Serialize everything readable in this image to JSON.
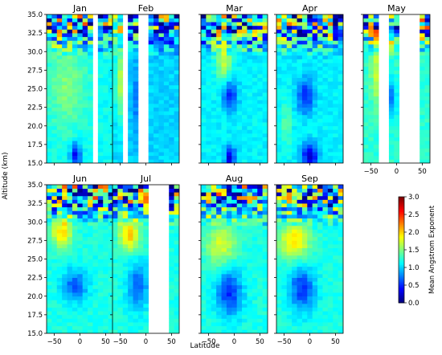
{
  "chart_data": {
    "type": "heatmap",
    "ylabel": "Altitude (km)",
    "xlabel": "Latitude",
    "xlim": [
      -65,
      65
    ],
    "ylim": [
      15,
      35
    ],
    "xticks": [
      "-50",
      "0",
      "50"
    ],
    "yticks": [
      "15.0",
      "17.5",
      "20.0",
      "22.5",
      "25.0",
      "27.5",
      "30.0",
      "32.5",
      "35.0"
    ],
    "grid": false,
    "panels": [
      {
        "title": "Jan",
        "gaps": [
          [
            25,
            33
          ]
        ],
        "features": {
          "bg": 1.15,
          "top": 1.0,
          "low": [
            {
              "lat": -8,
              "alt": 16.2,
              "rx": 10,
              "ry": 1.6,
              "d": -0.85
            }
          ],
          "highs": [
            {
              "lat": -25,
              "alt": 25.5,
              "rx": 40,
              "ry": 6,
              "d": 0.35
            }
          ]
        }
      },
      {
        "title": "Feb",
        "gaps": [
          [
            -40,
            -33
          ],
          [
            -10,
            0
          ]
        ],
        "features": {
          "bg": 1.0,
          "top": 0.8,
          "low": [
            {
              "lat": -15,
              "alt": 23,
              "rx": 10,
              "ry": 6,
              "d": -0.3
            }
          ],
          "highs": [
            {
              "lat": -52,
              "alt": 26,
              "rx": 8,
              "ry": 5,
              "d": 0.7
            }
          ]
        }
      },
      {
        "title": "Mar",
        "gaps": [],
        "features": {
          "bg": 1.1,
          "top": 0.9,
          "low": [
            {
              "lat": -8,
              "alt": 24.2,
              "rx": 14,
              "ry": 2.0,
              "d": -0.65
            },
            {
              "lat": -8,
              "alt": 15.8,
              "rx": 10,
              "ry": 1.5,
              "d": -0.85
            }
          ],
          "highs": [
            {
              "lat": -20,
              "alt": 29,
              "rx": 15,
              "ry": 3,
              "d": 0.6
            }
          ]
        }
      },
      {
        "title": "Apr",
        "gaps": [],
        "features": {
          "bg": 1.1,
          "top": 0.9,
          "low": [
            {
              "lat": -8,
              "alt": 24.0,
              "rx": 16,
              "ry": 2.4,
              "d": -0.6
            },
            {
              "lat": 0,
              "alt": 16.0,
              "rx": 15,
              "ry": 1.6,
              "d": -0.9
            }
          ],
          "highs": [
            {
              "lat": -45,
              "alt": 20,
              "rx": 10,
              "ry": 3,
              "d": 0.3
            }
          ]
        }
      },
      {
        "title": "May",
        "gaps": [
          [
            -30,
            -18
          ],
          [
            8,
            45
          ]
        ],
        "features": {
          "bg": 1.25,
          "top": 1.2,
          "low": [
            {
              "lat": -12,
              "alt": 23.5,
              "rx": 12,
              "ry": 2.5,
              "d": -0.55
            }
          ],
          "highs": [
            {
              "lat": -40,
              "alt": 27,
              "rx": 10,
              "ry": 4,
              "d": 0.45
            }
          ]
        }
      },
      {
        "title": "Jun",
        "gaps": [],
        "features": {
          "bg": 1.2,
          "top": 1.0,
          "low": [
            {
              "lat": -10,
              "alt": 21.5,
              "rx": 25,
              "ry": 2.2,
              "d": -0.55
            }
          ],
          "highs": [
            {
              "lat": -35,
              "alt": 28.8,
              "rx": 20,
              "ry": 2.2,
              "d": 0.8
            }
          ]
        }
      },
      {
        "title": "Jul",
        "gaps": [
          [
            5,
            40
          ]
        ],
        "features": {
          "bg": 1.2,
          "top": 1.0,
          "low": [
            {
              "lat": -15,
              "alt": 21.5,
              "rx": 20,
              "ry": 3,
              "d": -0.55
            }
          ],
          "highs": [
            {
              "lat": -32,
              "alt": 28.5,
              "rx": 20,
              "ry": 2.3,
              "d": 0.85
            }
          ]
        }
      },
      {
        "title": "Aug",
        "gaps": [],
        "features": {
          "bg": 1.2,
          "top": 1.0,
          "low": [
            {
              "lat": -10,
              "alt": 20.5,
              "rx": 25,
              "ry": 3.2,
              "d": -0.7
            }
          ],
          "highs": [
            {
              "lat": -25,
              "alt": 27,
              "rx": 30,
              "ry": 3,
              "d": 0.55
            }
          ]
        }
      },
      {
        "title": "Sep",
        "gaps": [],
        "features": {
          "bg": 1.2,
          "top": 0.8,
          "low": [
            {
              "lat": -15,
              "alt": 21,
              "rx": 25,
              "ry": 3,
              "d": -0.65
            }
          ],
          "highs": [
            {
              "lat": -30,
              "alt": 27.5,
              "rx": 30,
              "ry": 2.5,
              "d": 0.75
            }
          ]
        }
      }
    ],
    "colorbar": {
      "label": "Mean Angstrom Exponent",
      "range": [
        0.0,
        3.0
      ],
      "ticks": [
        "0.0",
        "0.5",
        "1.0",
        "1.5",
        "2.0",
        "2.5",
        "3.0"
      ],
      "colormap": "jet"
    }
  }
}
